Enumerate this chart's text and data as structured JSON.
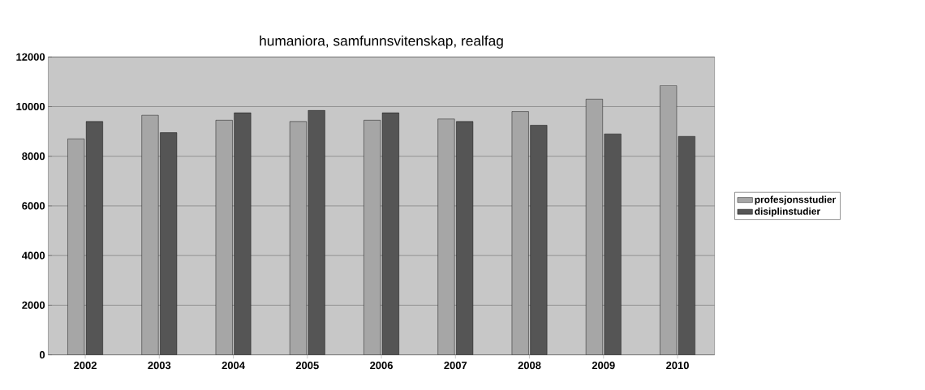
{
  "chart_data": {
    "type": "bar",
    "title": "humaniora, samfunnsvitenskap, realfag",
    "categories": [
      "2002",
      "2003",
      "2004",
      "2005",
      "2006",
      "2007",
      "2008",
      "2009",
      "2010"
    ],
    "series": [
      {
        "name": "profesjonsstudier",
        "color": "#a6a6a6",
        "values": [
          8700,
          9650,
          9450,
          9400,
          9450,
          9500,
          9800,
          10300,
          10850
        ]
      },
      {
        "name": "disiplinstudier",
        "color": "#555555",
        "values": [
          9400,
          8950,
          9750,
          9850,
          9750,
          9400,
          9250,
          8900,
          8800
        ]
      }
    ],
    "ylim": [
      0,
      12000
    ],
    "yticks": [
      0,
      2000,
      4000,
      6000,
      8000,
      10000,
      12000
    ],
    "grid": "y",
    "legend": "right"
  }
}
